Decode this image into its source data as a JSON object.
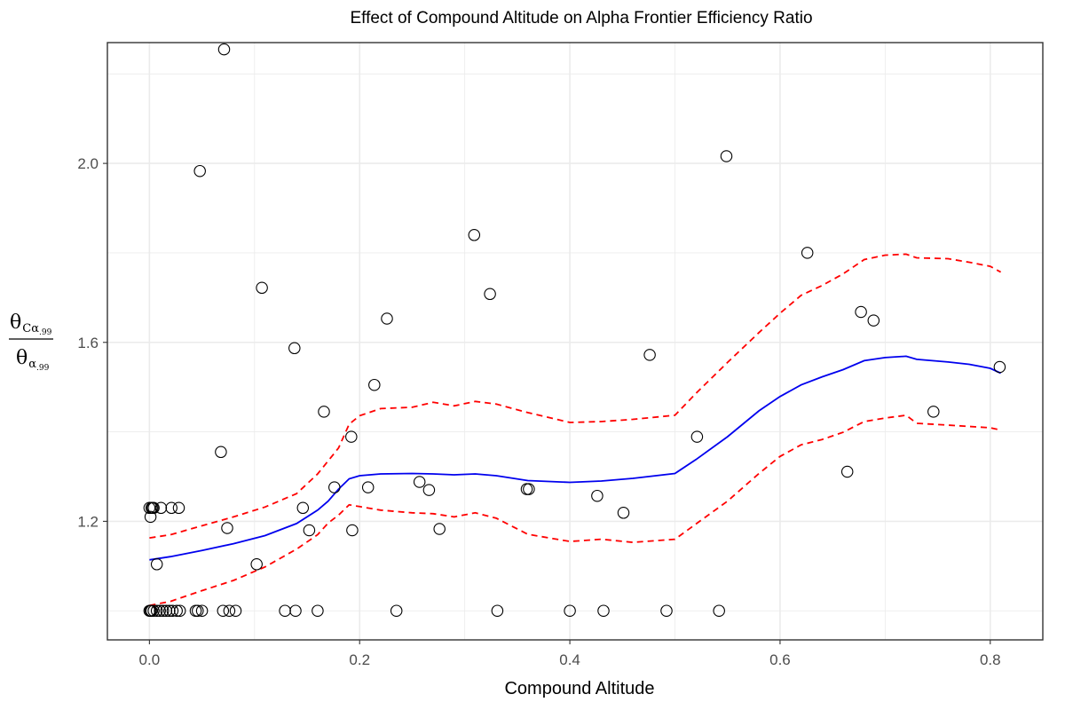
{
  "chart_data": {
    "type": "scatter",
    "title": "Effect of Compound Altitude on Alpha Frontier Efficiency Ratio",
    "xlabel": "Compound Altitude",
    "ylabel": {
      "numerator": "θ",
      "numerator_sub": "Cα",
      "numerator_subsub": ".99",
      "denominator": "θ",
      "denominator_sub": "α",
      "denominator_subsub": ".99"
    },
    "xlim": [
      -0.04,
      0.85
    ],
    "ylim": [
      0.935,
      2.27
    ],
    "x_ticks": [
      0.0,
      0.2,
      0.4,
      0.6,
      0.8
    ],
    "x_tick_labels": [
      "0.0",
      "0.2",
      "0.4",
      "0.6",
      "0.8"
    ],
    "y_ticks": [
      1.2,
      1.6,
      2.0
    ],
    "y_tick_labels": [
      "1.2",
      "1.6",
      "2.0"
    ],
    "x_minor": [
      0.1,
      0.3,
      0.5,
      0.7
    ],
    "y_minor": [
      1.0,
      1.4,
      1.8,
      2.2
    ],
    "grid": true,
    "colors": {
      "points": "#000000",
      "fit": "#0000ee",
      "band": "#ff0000",
      "grid": "#ebebeb",
      "panel_border": "#333333"
    },
    "points": [
      {
        "x": 0.071,
        "y": 2.255
      },
      {
        "x": 0.048,
        "y": 1.983
      },
      {
        "x": 0.549,
        "y": 2.016
      },
      {
        "x": 0.309,
        "y": 1.84
      },
      {
        "x": 0.626,
        "y": 1.8
      },
      {
        "x": 0.107,
        "y": 1.722
      },
      {
        "x": 0.324,
        "y": 1.708
      },
      {
        "x": 0.677,
        "y": 1.668
      },
      {
        "x": 0.689,
        "y": 1.649
      },
      {
        "x": 0.226,
        "y": 1.653
      },
      {
        "x": 0.138,
        "y": 1.587
      },
      {
        "x": 0.476,
        "y": 1.572
      },
      {
        "x": 0.809,
        "y": 1.545
      },
      {
        "x": 0.214,
        "y": 1.505
      },
      {
        "x": 0.166,
        "y": 1.445
      },
      {
        "x": 0.746,
        "y": 1.445
      },
      {
        "x": 0.192,
        "y": 1.389
      },
      {
        "x": 0.521,
        "y": 1.389
      },
      {
        "x": 0.068,
        "y": 1.355
      },
      {
        "x": 0.664,
        "y": 1.311
      },
      {
        "x": 0.257,
        "y": 1.288
      },
      {
        "x": 0.176,
        "y": 1.276
      },
      {
        "x": 0.208,
        "y": 1.276
      },
      {
        "x": 0.266,
        "y": 1.27
      },
      {
        "x": 0.359,
        "y": 1.272
      },
      {
        "x": 0.361,
        "y": 1.272
      },
      {
        "x": 0.426,
        "y": 1.257
      },
      {
        "x": 0.0,
        "y": 1.23
      },
      {
        "x": 0.002,
        "y": 1.23
      },
      {
        "x": 0.003,
        "y": 1.23
      },
      {
        "x": 0.004,
        "y": 1.23
      },
      {
        "x": 0.011,
        "y": 1.23
      },
      {
        "x": 0.021,
        "y": 1.23
      },
      {
        "x": 0.028,
        "y": 1.23
      },
      {
        "x": 0.146,
        "y": 1.23
      },
      {
        "x": 0.451,
        "y": 1.219
      },
      {
        "x": 0.001,
        "y": 1.21
      },
      {
        "x": 0.074,
        "y": 1.185
      },
      {
        "x": 0.152,
        "y": 1.18
      },
      {
        "x": 0.193,
        "y": 1.18
      },
      {
        "x": 0.276,
        "y": 1.183
      },
      {
        "x": 0.007,
        "y": 1.104
      },
      {
        "x": 0.102,
        "y": 1.104
      },
      {
        "x": 0.0,
        "y": 1.0
      },
      {
        "x": 0.001,
        "y": 1.0
      },
      {
        "x": 0.002,
        "y": 1.0
      },
      {
        "x": 0.004,
        "y": 1.0
      },
      {
        "x": 0.007,
        "y": 1.0
      },
      {
        "x": 0.01,
        "y": 1.0
      },
      {
        "x": 0.013,
        "y": 1.0
      },
      {
        "x": 0.016,
        "y": 1.0
      },
      {
        "x": 0.019,
        "y": 1.0
      },
      {
        "x": 0.022,
        "y": 1.0
      },
      {
        "x": 0.026,
        "y": 1.0
      },
      {
        "x": 0.029,
        "y": 1.0
      },
      {
        "x": 0.044,
        "y": 1.0
      },
      {
        "x": 0.046,
        "y": 1.0
      },
      {
        "x": 0.05,
        "y": 1.0
      },
      {
        "x": 0.07,
        "y": 1.0
      },
      {
        "x": 0.076,
        "y": 1.0
      },
      {
        "x": 0.082,
        "y": 1.0
      },
      {
        "x": 0.129,
        "y": 1.0
      },
      {
        "x": 0.139,
        "y": 1.0
      },
      {
        "x": 0.16,
        "y": 1.0
      },
      {
        "x": 0.235,
        "y": 1.0
      },
      {
        "x": 0.331,
        "y": 1.0
      },
      {
        "x": 0.4,
        "y": 1.0
      },
      {
        "x": 0.432,
        "y": 1.0
      },
      {
        "x": 0.492,
        "y": 1.0
      },
      {
        "x": 0.542,
        "y": 1.0
      }
    ],
    "fit_line": {
      "x": [
        0.0,
        0.02,
        0.05,
        0.08,
        0.11,
        0.14,
        0.16,
        0.17,
        0.18,
        0.19,
        0.2,
        0.22,
        0.25,
        0.27,
        0.29,
        0.31,
        0.33,
        0.36,
        0.4,
        0.43,
        0.46,
        0.5,
        0.52,
        0.55,
        0.58,
        0.6,
        0.62,
        0.64,
        0.66,
        0.68,
        0.7,
        0.72,
        0.73,
        0.76,
        0.78,
        0.8,
        0.81
      ],
      "y": [
        1.114,
        1.121,
        1.135,
        1.15,
        1.168,
        1.195,
        1.225,
        1.245,
        1.272,
        1.295,
        1.302,
        1.306,
        1.307,
        1.306,
        1.304,
        1.306,
        1.302,
        1.291,
        1.287,
        1.29,
        1.296,
        1.307,
        1.338,
        1.389,
        1.447,
        1.479,
        1.505,
        1.523,
        1.539,
        1.559,
        1.566,
        1.569,
        1.562,
        1.556,
        1.551,
        1.542,
        1.531
      ]
    },
    "band_upper": {
      "x": [
        0.0,
        0.02,
        0.05,
        0.08,
        0.11,
        0.14,
        0.16,
        0.17,
        0.18,
        0.19,
        0.2,
        0.22,
        0.25,
        0.27,
        0.29,
        0.31,
        0.33,
        0.36,
        0.4,
        0.43,
        0.46,
        0.5,
        0.52,
        0.55,
        0.58,
        0.6,
        0.62,
        0.64,
        0.66,
        0.68,
        0.7,
        0.72,
        0.73,
        0.76,
        0.78,
        0.8,
        0.81
      ],
      "y": [
        1.163,
        1.17,
        1.19,
        1.21,
        1.232,
        1.262,
        1.306,
        1.335,
        1.364,
        1.417,
        1.436,
        1.452,
        1.455,
        1.466,
        1.458,
        1.468,
        1.462,
        1.443,
        1.421,
        1.423,
        1.428,
        1.437,
        1.486,
        1.555,
        1.622,
        1.665,
        1.705,
        1.727,
        1.753,
        1.785,
        1.795,
        1.797,
        1.789,
        1.787,
        1.779,
        1.77,
        1.757
      ]
    },
    "band_lower": {
      "x": [
        0.0,
        0.02,
        0.05,
        0.08,
        0.11,
        0.14,
        0.16,
        0.17,
        0.18,
        0.19,
        0.2,
        0.22,
        0.25,
        0.27,
        0.29,
        0.31,
        0.33,
        0.36,
        0.4,
        0.43,
        0.46,
        0.5,
        0.52,
        0.55,
        0.58,
        0.6,
        0.62,
        0.64,
        0.66,
        0.68,
        0.7,
        0.72,
        0.73,
        0.76,
        0.78,
        0.8,
        0.81
      ],
      "y": [
        1.012,
        1.021,
        1.045,
        1.068,
        1.098,
        1.138,
        1.17,
        1.196,
        1.214,
        1.237,
        1.233,
        1.225,
        1.219,
        1.217,
        1.21,
        1.219,
        1.207,
        1.171,
        1.155,
        1.16,
        1.153,
        1.16,
        1.194,
        1.245,
        1.307,
        1.345,
        1.371,
        1.383,
        1.399,
        1.423,
        1.431,
        1.437,
        1.419,
        1.415,
        1.412,
        1.409,
        1.404
      ]
    }
  }
}
